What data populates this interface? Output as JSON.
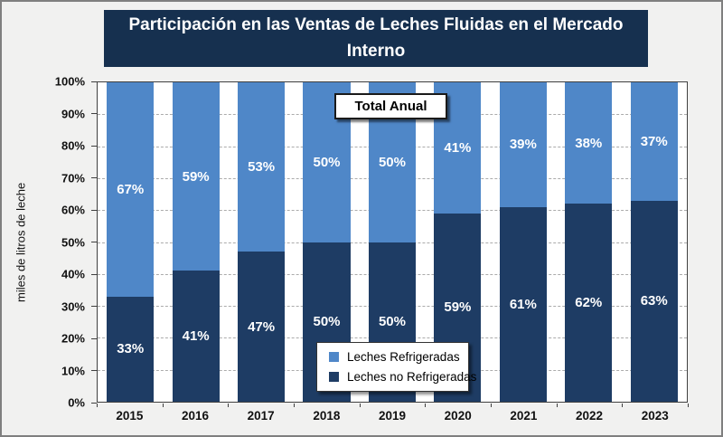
{
  "chart_data": {
    "type": "bar",
    "stacked": true,
    "title": "Participación en las Ventas de Leches Fluidas en el Mercado Interno",
    "ylabel": "miles de litros de leche",
    "annotation": "Total Anual",
    "categories": [
      "2015",
      "2016",
      "2017",
      "2018",
      "2019",
      "2020",
      "2021",
      "2022",
      "2023"
    ],
    "series": [
      {
        "name": "Leches Refrigeradas",
        "position": "top",
        "color": "#4F87C8",
        "values": [
          67,
          59,
          53,
          50,
          50,
          41,
          39,
          38,
          37
        ],
        "labels": [
          "67%",
          "59%",
          "53%",
          "50%",
          "50%",
          "41%",
          "39%",
          "38%",
          "37%"
        ]
      },
      {
        "name": "Leches no Refrigeradas",
        "position": "bottom",
        "color": "#1E3C64",
        "values": [
          33,
          41,
          47,
          50,
          50,
          59,
          61,
          62,
          63
        ],
        "labels": [
          "33%",
          "41%",
          "47%",
          "50%",
          "50%",
          "59%",
          "61%",
          "62%",
          "63%"
        ]
      }
    ],
    "y_ticks": [
      "100%",
      "90%",
      "80%",
      "70%",
      "60%",
      "50%",
      "40%",
      "30%",
      "20%",
      "10%",
      "0%"
    ],
    "ylim": [
      0,
      100
    ],
    "grid": "horizontal-dashed",
    "legend_position": "inside-bottom-center"
  },
  "colors": {
    "title_bg": "#16304F",
    "title_text": "#FFFFFF",
    "canvas_bg": "#F1F1F0",
    "plot_bg": "#FFFFFF",
    "series_refrigeradas": "#4F87C8",
    "series_no_refrigeradas": "#1E3C64",
    "gridline": "#ABABAB",
    "axis": "#404040",
    "value_label_text": "#FFFFFF"
  }
}
